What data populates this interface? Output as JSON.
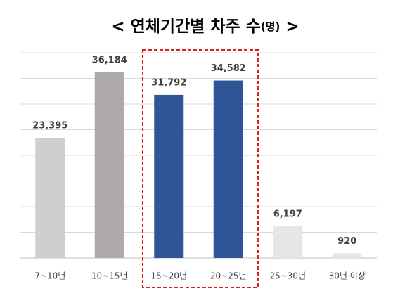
{
  "chart_data": {
    "type": "bar",
    "title": "< 연체기간별 차주 수",
    "title_unit": "(명)",
    "title_end": ">",
    "categories": [
      "7~10년",
      "10~15년",
      "15~20년",
      "20~25년",
      "25~30년",
      "30년 이상"
    ],
    "values": [
      23395,
      36184,
      31792,
      34582,
      6197,
      920
    ],
    "value_labels": [
      "23,395",
      "36,184",
      "31,792",
      "34,582",
      "6,197",
      "920"
    ],
    "colors": [
      "#d0cece",
      "#aeaaaa",
      "#2f5597",
      "#2f5597",
      "#e7e6e6",
      "#e7e6e6"
    ],
    "ylim": [
      0,
      40000
    ],
    "yticks": [
      0,
      5000,
      10000,
      15000,
      20000,
      25000,
      30000,
      35000,
      40000
    ],
    "grid": true
  }
}
